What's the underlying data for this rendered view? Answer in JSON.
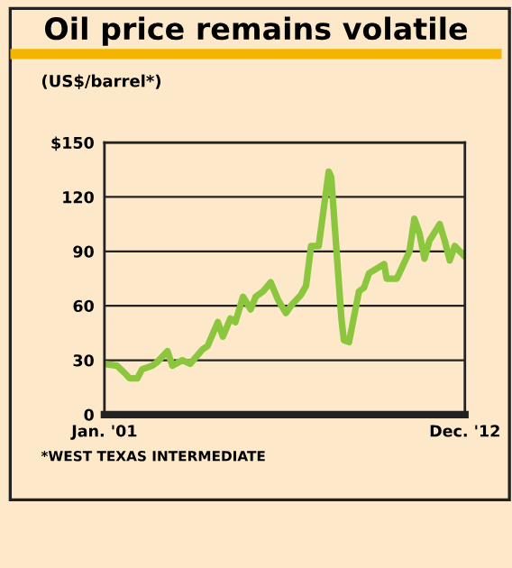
{
  "chart_data": {
    "type": "line",
    "title": "Oil price remains volatile",
    "ylabel": "(US$/barrel*)",
    "x": [
      "2001-01",
      "2001-06",
      "2001-09",
      "2001-11",
      "2002-02",
      "2002-04",
      "2002-08",
      "2002-10",
      "2003-02",
      "2003-04",
      "2003-08",
      "2003-11",
      "2004-04",
      "2004-06",
      "2004-10",
      "2004-12",
      "2005-03",
      "2005-05",
      "2005-08",
      "2005-11",
      "2006-01",
      "2006-04",
      "2006-07",
      "2006-10",
      "2007-01",
      "2007-03",
      "2007-07",
      "2007-09",
      "2007-11",
      "2008-02",
      "2008-06",
      "2008-07",
      "2008-11",
      "2008-12",
      "2009-02",
      "2009-06",
      "2009-08",
      "2009-10",
      "2010-04",
      "2010-05",
      "2010-09",
      "2010-11",
      "2011-02",
      "2011-04",
      "2011-06",
      "2011-08",
      "2011-10",
      "2012-02",
      "2012-04",
      "2012-06",
      "2012-08",
      "2012-12"
    ],
    "series": [
      {
        "color": "#8cc63f",
        "values": [
          28,
          27,
          23,
          20,
          20,
          25,
          27,
          29,
          35,
          27,
          30,
          28,
          36,
          38,
          51,
          43,
          53,
          51,
          65,
          58,
          65,
          68,
          73,
          63,
          56,
          60,
          66,
          71,
          93,
          93,
          134,
          131,
          53,
          41,
          40,
          68,
          70,
          78,
          83,
          75,
          75,
          81,
          90,
          108,
          100,
          86,
          96,
          105,
          96,
          85,
          93,
          87
        ]
      }
    ],
    "xlim": [
      "2001-01",
      "2012-12"
    ],
    "xticks": [
      {
        "value": "2001-01",
        "label": "Jan. '01"
      },
      {
        "value": "2012-12",
        "label": "Dec. '12"
      }
    ],
    "ylim": [
      0,
      150
    ],
    "yticks": [
      0,
      30,
      60,
      90,
      120,
      {
        "value": 150,
        "label": "$150"
      }
    ],
    "grid": "y",
    "legend": false,
    "annotations": [
      "*WEST TEXAS INTERMEDIATE"
    ]
  }
}
